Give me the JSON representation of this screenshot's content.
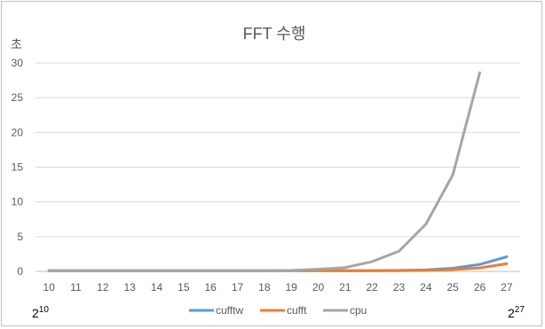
{
  "chart_data": {
    "type": "line",
    "title": "FFT 수행",
    "ylabel": "초",
    "xlabel": "",
    "categories": [
      "10",
      "11",
      "12",
      "13",
      "14",
      "15",
      "16",
      "17",
      "18",
      "19",
      "20",
      "21",
      "22",
      "23",
      "24",
      "25",
      "26",
      "27"
    ],
    "ylim": [
      0,
      30
    ],
    "yticks": [
      0,
      5,
      10,
      15,
      20,
      25,
      30
    ],
    "grid": true,
    "legend": "bottom",
    "corner_labels": {
      "left_base": "2",
      "left_exp": "10",
      "right_base": "2",
      "right_exp": "27"
    },
    "series": [
      {
        "name": "cufftw",
        "color": "#5b9bd5",
        "values": [
          0.1,
          0.1,
          0.1,
          0.1,
          0.1,
          0.1,
          0.1,
          0.1,
          0.1,
          0.1,
          0.1,
          0.1,
          0.1,
          0.15,
          0.2,
          0.45,
          1.0,
          2.1
        ]
      },
      {
        "name": "cufft",
        "color": "#ed7d31",
        "values": [
          0.1,
          0.1,
          0.1,
          0.1,
          0.1,
          0.1,
          0.1,
          0.1,
          0.1,
          0.1,
          0.1,
          0.1,
          0.1,
          0.1,
          0.15,
          0.25,
          0.5,
          1.1
        ]
      },
      {
        "name": "cpu",
        "color": "#a5a5a5",
        "values": [
          0.1,
          0.1,
          0.1,
          0.1,
          0.1,
          0.1,
          0.1,
          0.1,
          0.1,
          0.15,
          0.3,
          0.55,
          1.4,
          2.9,
          6.8,
          13.9,
          28.6,
          null
        ]
      }
    ]
  }
}
